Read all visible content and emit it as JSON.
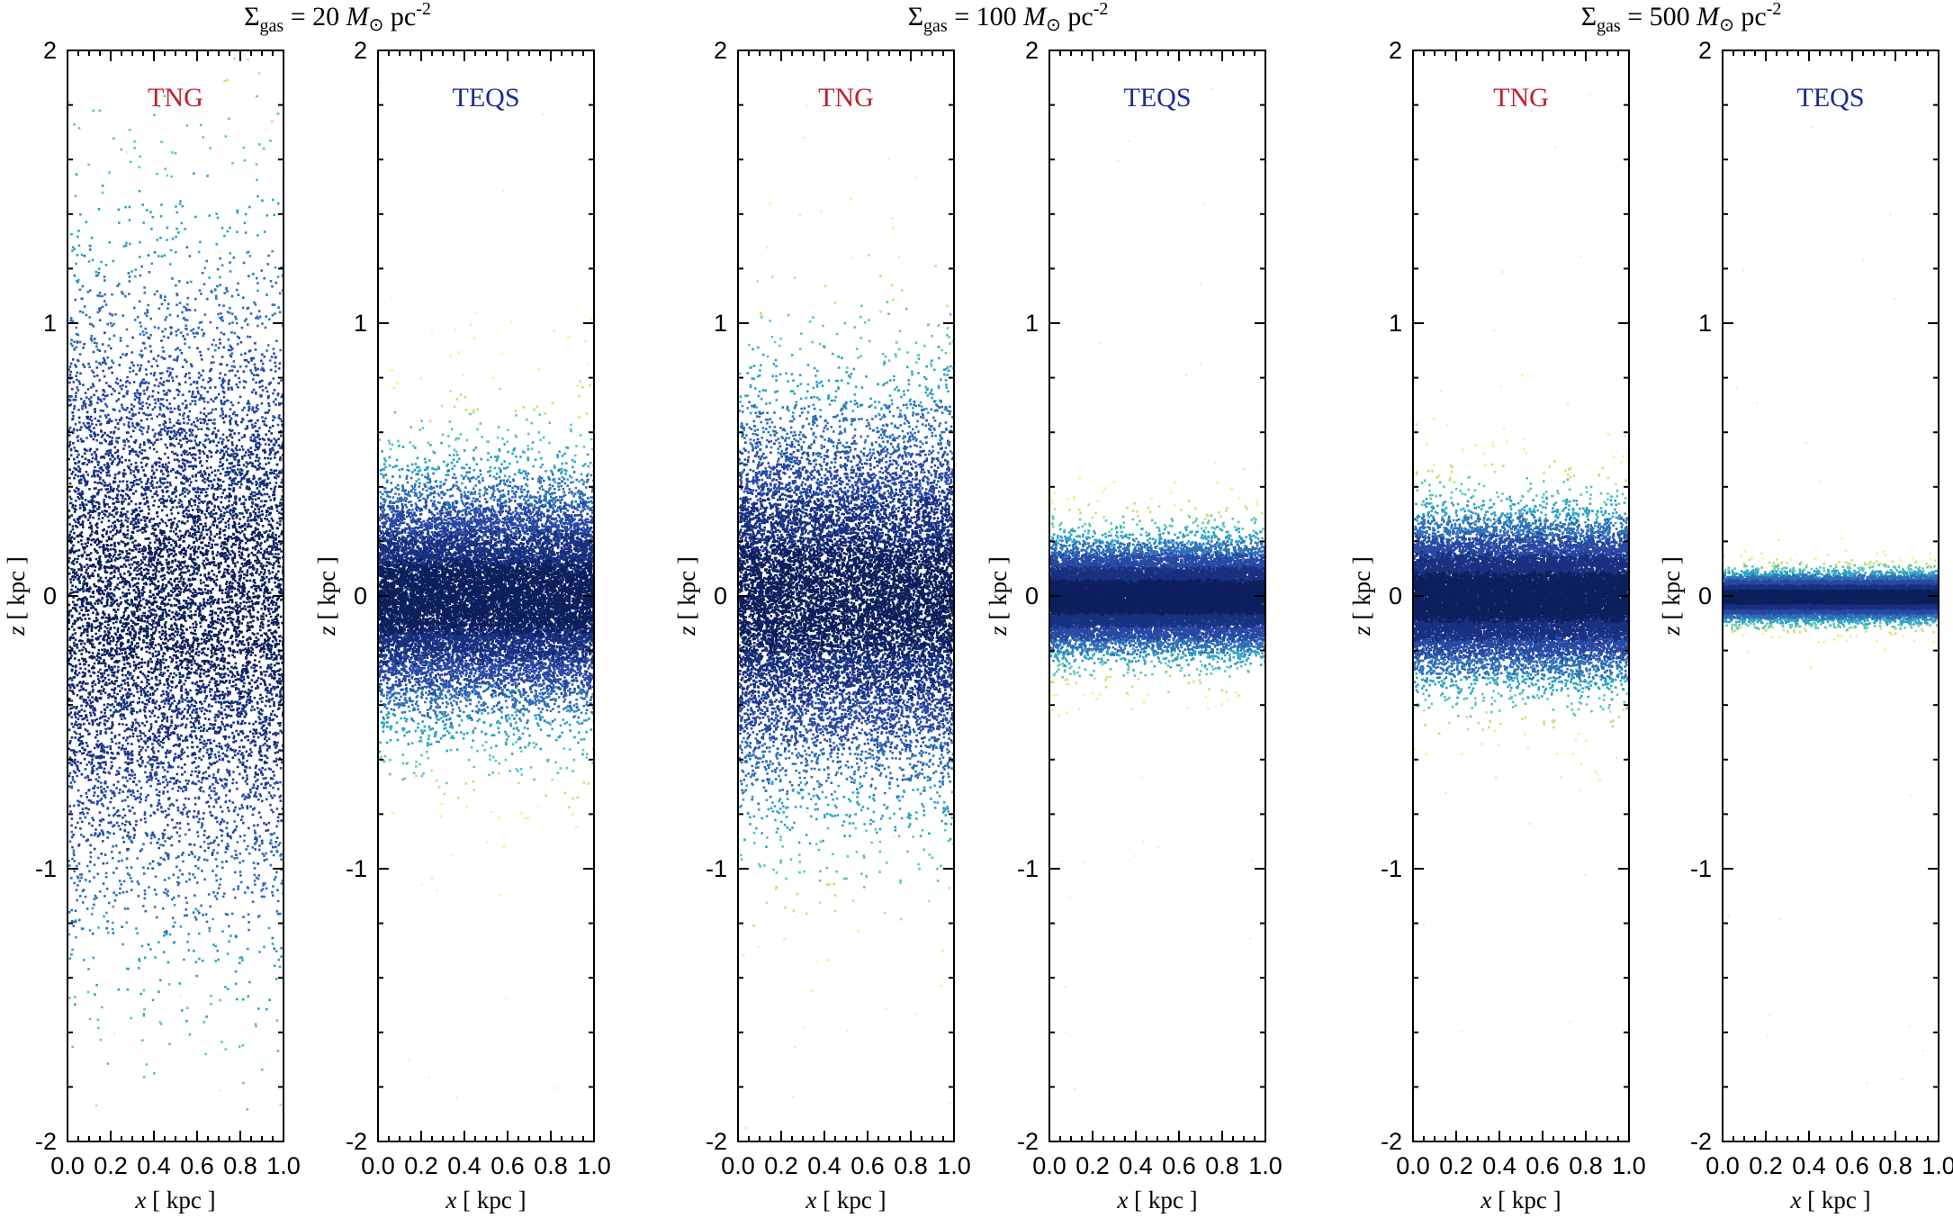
{
  "chart_data": {
    "type": "scatter",
    "xlabel_var": "x",
    "xlabel_unit": "[ kpc ]",
    "ylabel_var": "z",
    "ylabel_unit": "[ kpc ]",
    "xlim": [
      0.0,
      1.0
    ],
    "ylim": [
      -2,
      2
    ],
    "xticks": [
      "0.0",
      "0.2",
      "0.4",
      "0.6",
      "0.8",
      "1.0"
    ],
    "yticks": [
      "-2",
      "-1",
      "0",
      "1",
      "2"
    ],
    "colors": {
      "TNG": "#c0202a",
      "TEQS": "#1a2a9a"
    },
    "colormap": [
      "#0b1f5c",
      "#17307f",
      "#2748a3",
      "#2f6fb8",
      "#2fa3c4",
      "#5cc8b4",
      "#c9e07a",
      "#f3f08a"
    ],
    "groups": [
      {
        "title": {
          "sym": "Σ",
          "sub": "gas",
          "eq": " = 20 ",
          "unit": "M",
          "rest": "pc",
          "exp": "-2"
        },
        "panels": [
          {
            "label": "TNG",
            "scale_height": 0.55,
            "n_points": 9000,
            "seed": 11
          },
          {
            "label": "TEQS",
            "scale_height": 0.2,
            "n_points": 16000,
            "seed": 12
          }
        ]
      },
      {
        "title": {
          "sym": "Σ",
          "sub": "gas",
          "eq": " = 100 ",
          "unit": "M",
          "rest": "pc",
          "exp": "-2"
        },
        "panels": [
          {
            "label": "TNG",
            "scale_height": 0.32,
            "n_points": 14000,
            "seed": 21
          },
          {
            "label": "TEQS",
            "scale_height": 0.09,
            "n_points": 20000,
            "seed": 22
          }
        ]
      },
      {
        "title": {
          "sym": "Σ",
          "sub": "gas",
          "eq": " = 500 ",
          "unit": "M",
          "rest": "pc",
          "exp": "-2"
        },
        "panels": [
          {
            "label": "TNG",
            "scale_height": 0.13,
            "n_points": 20000,
            "seed": 31
          },
          {
            "label": "TEQS",
            "scale_height": 0.035,
            "n_points": 24000,
            "seed": 32
          }
        ]
      }
    ]
  }
}
